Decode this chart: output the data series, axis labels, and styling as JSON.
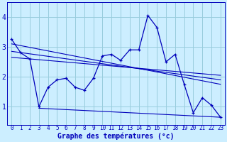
{
  "xlabel": "Graphe des températures (°c)",
  "bg_color": "#cceeff",
  "grid_color": "#99ccdd",
  "line_color": "#0000bb",
  "x_ticks": [
    0,
    1,
    2,
    3,
    4,
    5,
    6,
    7,
    8,
    9,
    10,
    11,
    12,
    13,
    14,
    15,
    16,
    17,
    18,
    19,
    20,
    21,
    22,
    23
  ],
  "y_ticks": [
    1,
    2,
    3,
    4
  ],
  "ylim": [
    0.4,
    4.5
  ],
  "xlim": [
    -0.5,
    23.5
  ],
  "temp_line": {
    "x": [
      0,
      1,
      2,
      3,
      4,
      5,
      6,
      7,
      8,
      9,
      10,
      11,
      12,
      13,
      14,
      15,
      16,
      17,
      18,
      19,
      20,
      21,
      22,
      23
    ],
    "y": [
      3.25,
      2.8,
      2.6,
      1.0,
      1.65,
      1.9,
      1.95,
      1.65,
      1.55,
      1.95,
      2.7,
      2.75,
      2.55,
      2.9,
      2.9,
      4.05,
      3.65,
      2.5,
      2.75,
      1.75,
      0.8,
      1.3,
      1.05,
      0.65
    ]
  },
  "regression_line1": {
    "x": [
      0,
      23
    ],
    "y": [
      3.1,
      1.75
    ]
  },
  "regression_line2": {
    "x": [
      0,
      23
    ],
    "y": [
      2.85,
      1.9
    ]
  },
  "regression_line3": {
    "x": [
      0,
      23
    ],
    "y": [
      2.65,
      2.05
    ]
  },
  "flat_line": {
    "x": [
      3,
      23
    ],
    "y": [
      0.95,
      0.65
    ]
  }
}
